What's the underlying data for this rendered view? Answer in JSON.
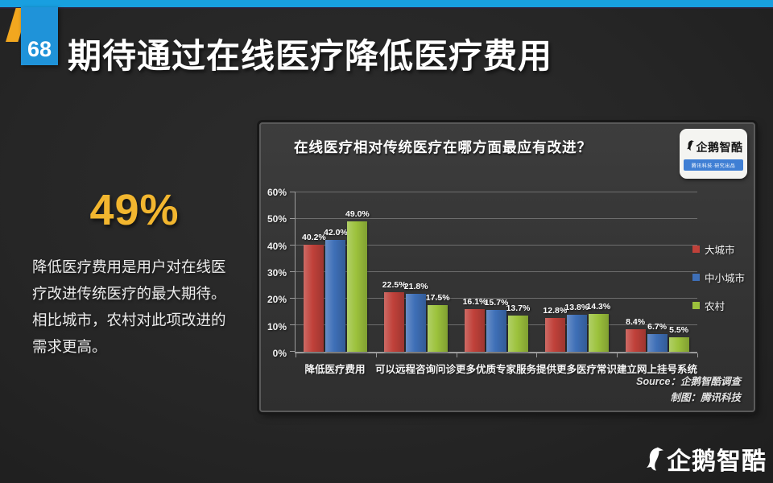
{
  "colors": {
    "top_bar_blue": "#189fe0",
    "page_tab_blue": "#1f93d9",
    "accent_yellow": "#f2a71f",
    "stat_yellow": "#f2b62f",
    "badge_strip_blue": "#3f7fd4"
  },
  "slide": {
    "page_number": "68",
    "title": "期待通过在线医疗降低医疗费用",
    "stat_highlight": "49%",
    "body_text": "降低医疗费用是用户对在线医疗改进传统医疗的最大期待。相比城市，农村对此项改进的需求更高。",
    "footer_logo_text": "企鹅智酷"
  },
  "chart_panel": {
    "title": "在线医疗相对传统医疗在哪方面最应有改进？",
    "badge_logo_text": "企鹅智酷",
    "badge_tagline": "腾讯科技·研究出品",
    "source_line1": "Source：企鹅智酷调查",
    "source_line2": "制图：腾讯科技"
  },
  "chart_data": {
    "type": "bar",
    "title": "在线医疗相对传统医疗在哪方面最应有改进？",
    "categories": [
      "降低医疗费用",
      "可以远程咨询问诊",
      "更多优质专家服务",
      "提供更多医疗常识",
      "建立网上挂号系统"
    ],
    "series": [
      {
        "name": "大城市",
        "color": "#c0413a",
        "values": [
          40.2,
          22.5,
          16.1,
          12.8,
          8.4
        ]
      },
      {
        "name": "中小城市",
        "color": "#3e6fb7",
        "values": [
          42.0,
          21.8,
          15.7,
          13.8,
          6.7
        ]
      },
      {
        "name": "农村",
        "color": "#9cc23c",
        "values": [
          49.0,
          17.5,
          13.7,
          14.3,
          5.5
        ]
      }
    ],
    "xlabel": "",
    "ylabel": "",
    "ylim": [
      0,
      60
    ],
    "yticks": [
      0,
      10,
      20,
      30,
      40,
      50,
      60
    ],
    "ytick_suffix": "%",
    "value_label_decimals": 1,
    "grid": true,
    "legend_position": "right"
  }
}
